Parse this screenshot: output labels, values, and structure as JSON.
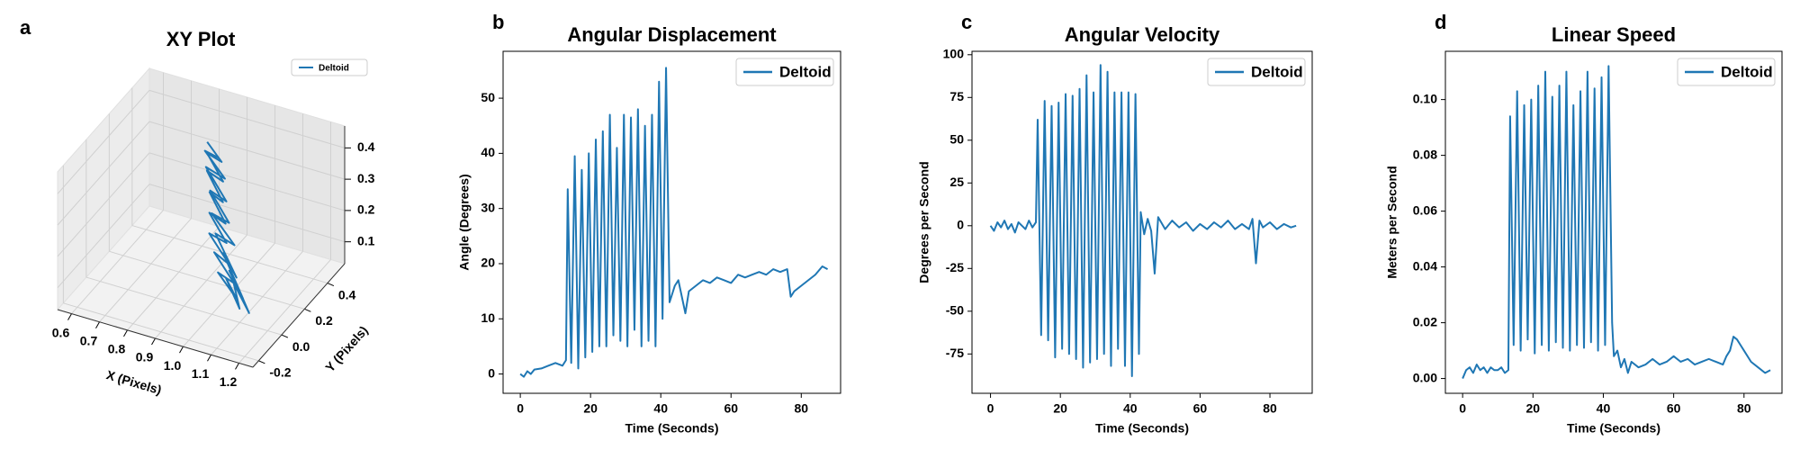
{
  "chart_data": [
    {
      "type": "line3d",
      "panel_label": "a",
      "title": "XY Plot",
      "xlabel": "X (Pixels)",
      "ylabel": "Y (Pixels)",
      "xlim": [
        0.55,
        1.25
      ],
      "ylim": [
        -0.25,
        0.55
      ],
      "zlim": [
        0.03,
        0.47
      ],
      "xticks": [
        0.6,
        0.7,
        0.8,
        0.9,
        {
          "value": 1,
          "label": "1.0"
        },
        1.1,
        1.2
      ],
      "yticks": [
        -0.2,
        {
          "value": 0,
          "label": "0.0"
        },
        0.2,
        0.4
      ],
      "zticks": [
        0.1,
        0.2,
        0.3,
        0.4
      ],
      "legend": "upper right",
      "series": [
        {
          "name": "Deltoid",
          "color": "#1f77b4",
          "x": [
            0.86,
            0.92,
            0.88,
            0.95,
            0.9,
            0.97,
            0.93,
            1.0,
            0.95,
            1.02,
            0.97,
            1.05,
            1.0,
            1.08,
            1.03,
            1.1,
            1.05,
            1.12,
            1.07,
            1.15,
            1.1,
            1.05,
            1.12,
            1.02,
            1.08,
            0.98,
            1.04,
            0.95,
            1.0,
            0.92,
            0.97,
            0.88,
            0.94,
            0.86,
            0.9
          ],
          "y": [
            0.3,
            0.28,
            0.25,
            0.22,
            0.2,
            0.17,
            0.15,
            0.12,
            0.1,
            0.08,
            0.05,
            0.03,
            0.02,
            0.0,
            -0.02,
            -0.03,
            0.0,
            -0.05,
            0.02,
            -0.04,
            0.0,
            0.03,
            -0.02,
            0.05,
            0.02,
            0.08,
            0.1,
            0.12,
            0.15,
            0.18,
            0.2,
            0.24,
            0.26,
            0.28,
            0.3
          ],
          "z": [
            0.42,
            0.38,
            0.41,
            0.35,
            0.38,
            0.31,
            0.34,
            0.27,
            0.3,
            0.23,
            0.26,
            0.19,
            0.22,
            0.15,
            0.18,
            0.12,
            0.16,
            0.1,
            0.14,
            0.09,
            0.13,
            0.17,
            0.12,
            0.21,
            0.16,
            0.25,
            0.22,
            0.29,
            0.26,
            0.33,
            0.3,
            0.37,
            0.34,
            0.4,
            0.38
          ]
        }
      ]
    },
    {
      "type": "line",
      "panel_label": "b",
      "title": "Angular Displacement",
      "xlabel": "Time (Seconds)",
      "ylabel": "Angle (Degrees)",
      "xlim": [
        -4.9,
        91.2
      ],
      "ylim": [
        -3.5,
        58.5
      ],
      "xticks": [
        0,
        20,
        40,
        60,
        80
      ],
      "yticks": [
        0,
        10,
        20,
        30,
        40,
        50
      ],
      "legend": "upper right",
      "x": [
        0,
        1,
        2,
        3,
        4,
        6,
        8,
        10,
        12,
        13,
        13.5,
        14.5,
        15.5,
        16.5,
        17.5,
        18.5,
        19.5,
        20.5,
        21.5,
        22.5,
        23.5,
        24.5,
        25.5,
        26.5,
        27.5,
        28.5,
        29.5,
        30.5,
        31.5,
        32.5,
        33.5,
        34.5,
        35.5,
        36.5,
        37.5,
        38.5,
        39.5,
        40.5,
        41.5,
        42.5,
        44,
        45,
        46,
        47,
        48,
        50,
        52,
        54,
        56,
        58,
        60,
        62,
        64,
        66,
        68,
        70,
        72,
        74,
        76,
        77,
        78,
        80,
        82,
        84,
        86,
        87.5
      ],
      "series": [
        {
          "name": "Deltoid",
          "color": "#1f77b4",
          "values": [
            0,
            -0.5,
            0.5,
            0,
            0.8,
            1,
            1.5,
            2,
            1.5,
            2.5,
            33.5,
            2,
            39.5,
            1,
            37,
            3,
            40,
            4,
            42.5,
            5,
            44,
            5,
            47,
            7,
            41,
            6,
            47,
            5,
            46.5,
            8,
            48,
            5,
            45,
            6,
            47,
            5,
            53,
            10,
            55.5,
            13,
            16,
            17,
            14,
            11,
            15,
            16,
            17,
            16.5,
            17.5,
            17,
            16.5,
            18,
            17.5,
            18,
            18.5,
            18,
            19,
            18.5,
            19,
            14,
            15,
            16,
            17,
            18,
            19.5,
            19
          ]
        }
      ]
    },
    {
      "type": "line",
      "panel_label": "c",
      "title": "Angular Velocity",
      "xlabel": "Time (Seconds)",
      "ylabel": "Degrees per Second",
      "xlim": [
        -5.3,
        92.1
      ],
      "ylim": [
        -98,
        102
      ],
      "xticks": [
        0,
        20,
        40,
        60,
        80
      ],
      "yticks": [
        -75,
        -50,
        -25,
        0,
        25,
        50,
        75,
        100
      ],
      "legend": "upper right",
      "x": [
        0,
        1,
        2,
        3,
        4,
        5,
        6,
        7,
        8,
        9,
        10,
        11,
        12,
        13,
        13.5,
        14.5,
        15.5,
        16.5,
        17.5,
        18.5,
        19.5,
        20.5,
        21.5,
        22.5,
        23.5,
        24.5,
        25.5,
        26.5,
        27.5,
        28.5,
        29.5,
        30.5,
        31.5,
        32.5,
        33.5,
        34.5,
        35.5,
        36.5,
        37.5,
        38.5,
        39.5,
        40.5,
        41.5,
        42.5,
        43,
        44,
        45,
        46,
        47,
        48,
        50,
        52,
        54,
        56,
        58,
        60,
        62,
        64,
        66,
        68,
        70,
        72,
        74,
        75,
        76,
        77,
        78,
        80,
        82,
        84,
        86,
        87.5
      ],
      "series": [
        {
          "name": "Deltoid",
          "color": "#1f77b4",
          "values": [
            0,
            -3,
            2,
            -1,
            3,
            -2,
            1,
            -4,
            2,
            0,
            -2,
            3,
            -1,
            2,
            62,
            -64,
            73,
            -67,
            70,
            -77,
            72,
            -72,
            77,
            -75,
            76,
            -78,
            80,
            -83,
            88,
            -80,
            78,
            -78,
            94,
            -75,
            90,
            -82,
            78,
            -72,
            78,
            -82,
            78,
            -88,
            77,
            -75,
            8,
            -5,
            4,
            -3,
            -28,
            5,
            -2,
            3,
            -1,
            2,
            -3,
            1,
            -2,
            2,
            -1,
            3,
            -2,
            1,
            -2,
            4,
            -22,
            3,
            -1,
            2,
            -2,
            1,
            -1,
            0
          ]
        }
      ]
    },
    {
      "type": "line",
      "panel_label": "d",
      "title": "Linear Speed",
      "xlabel": "Time (Seconds)",
      "ylabel": "Meters per Second",
      "xlim": [
        -4.9,
        90.8
      ],
      "ylim": [
        -0.0053,
        0.1173
      ],
      "xticks": [
        0,
        20,
        40,
        60,
        80
      ],
      "yticks": [
        {
          "value": 0,
          "label": "0.00"
        },
        {
          "value": 0.02,
          "label": "0.02"
        },
        {
          "value": 0.04,
          "label": "0.04"
        },
        {
          "value": 0.06,
          "label": "0.06"
        },
        {
          "value": 0.08,
          "label": "0.08"
        },
        {
          "value": 0.1,
          "label": "0.10"
        }
      ],
      "legend": "upper right",
      "x": [
        0,
        1,
        2,
        3,
        4,
        5,
        6,
        7,
        8,
        9,
        10,
        11,
        12,
        13,
        13.5,
        14.5,
        15.5,
        16.5,
        17.5,
        18.5,
        19.5,
        20.5,
        21.5,
        22.5,
        23.5,
        24.5,
        25.5,
        26.5,
        27.5,
        28.5,
        29.5,
        30.5,
        31.5,
        32.5,
        33.5,
        34.5,
        35.5,
        36.5,
        37.5,
        38.5,
        39.5,
        40.5,
        41.5,
        42.5,
        43,
        44,
        45,
        46,
        47,
        48,
        50,
        52,
        54,
        56,
        58,
        60,
        62,
        64,
        66,
        68,
        70,
        72,
        74,
        75,
        76,
        77,
        78,
        79,
        80,
        82,
        84,
        86,
        87.5
      ],
      "series": [
        {
          "name": "Deltoid",
          "color": "#1f77b4",
          "values": [
            0,
            0.003,
            0.004,
            0.002,
            0.005,
            0.003,
            0.004,
            0.002,
            0.004,
            0.003,
            0.003,
            0.004,
            0.002,
            0.003,
            0.094,
            0.012,
            0.103,
            0.01,
            0.098,
            0.014,
            0.1,
            0.009,
            0.105,
            0.012,
            0.11,
            0.01,
            0.101,
            0.013,
            0.105,
            0.011,
            0.11,
            0.01,
            0.098,
            0.012,
            0.103,
            0.011,
            0.11,
            0.013,
            0.104,
            0.01,
            0.108,
            0.012,
            0.112,
            0.02,
            0.008,
            0.01,
            0.004,
            0.007,
            0.002,
            0.006,
            0.004,
            0.005,
            0.007,
            0.005,
            0.006,
            0.008,
            0.006,
            0.007,
            0.005,
            0.006,
            0.007,
            0.006,
            0.005,
            0.008,
            0.01,
            0.015,
            0.014,
            0.012,
            0.01,
            0.006,
            0.004,
            0.002,
            0.003
          ]
        }
      ]
    }
  ]
}
